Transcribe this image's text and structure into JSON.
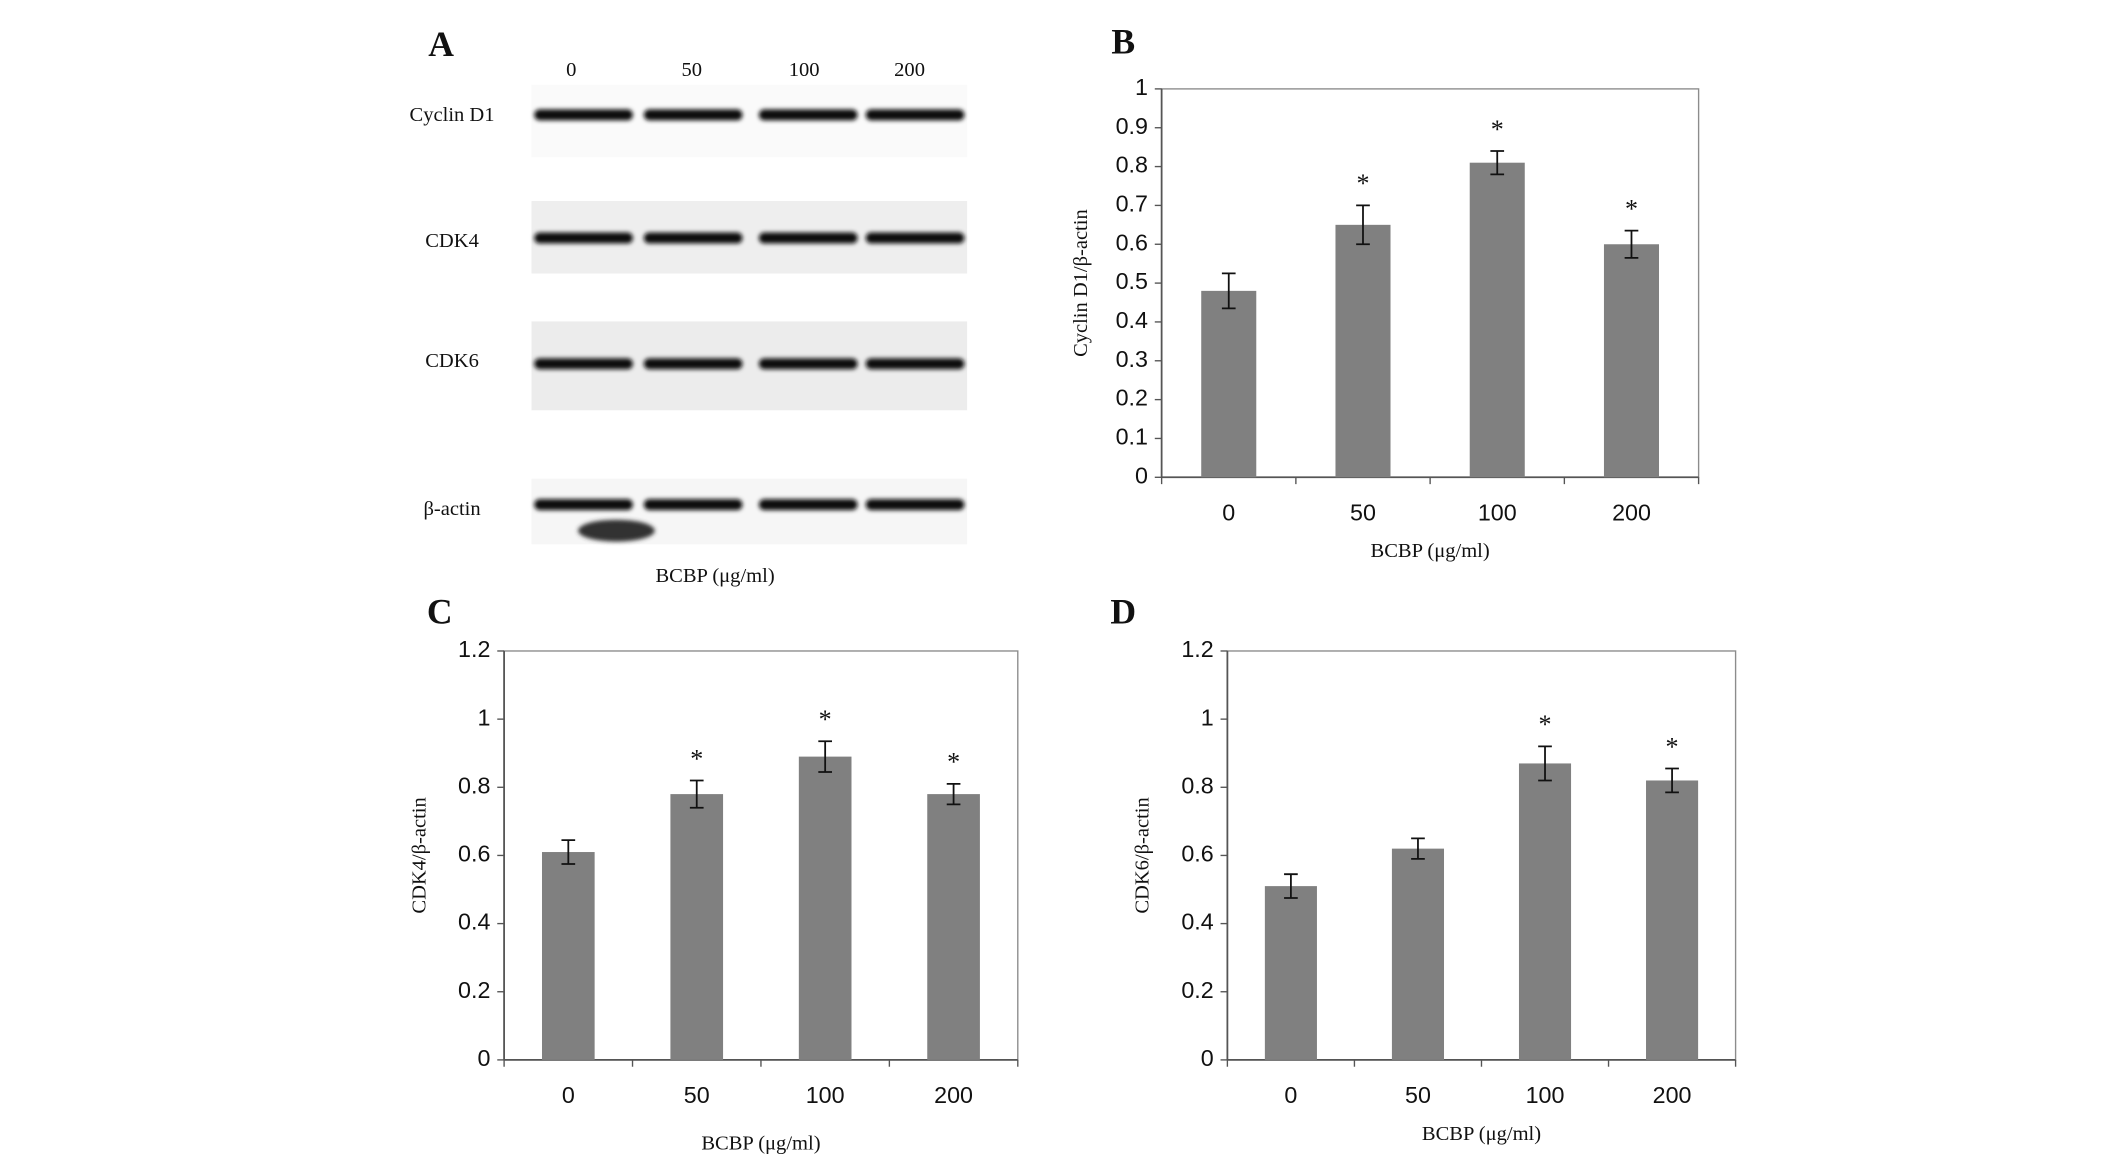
{
  "blot": {
    "panel": "A",
    "lanes": [
      "0",
      "50",
      "100",
      "200"
    ],
    "bands": [
      "Cyclin D1",
      "CDK4",
      "CDK6",
      "β-actin"
    ],
    "x_label": "BCBP (μg/ml)"
  },
  "chart_data": [
    {
      "type": "bar",
      "panel": "B",
      "y_label": "Cyclin D1/β-actin",
      "x_label": "BCBP (μg/ml)",
      "categories": [
        "0",
        "50",
        "100",
        "200"
      ],
      "values": [
        0.48,
        0.65,
        0.81,
        0.6
      ],
      "errors": [
        0.045,
        0.05,
        0.03,
        0.035
      ],
      "annotations": [
        null,
        "*",
        "*",
        "*"
      ],
      "color": "#808080",
      "ylim": [
        0,
        1
      ],
      "yticks": [
        0,
        0.1,
        0.2,
        0.3,
        0.4,
        0.5,
        0.6,
        0.7,
        0.8,
        0.9,
        1
      ]
    },
    {
      "type": "bar",
      "panel": "C",
      "y_label": "CDK4/β-actin",
      "x_label": "BCBP (μg/ml)",
      "categories": [
        "0",
        "50",
        "100",
        "200"
      ],
      "values": [
        0.61,
        0.78,
        0.89,
        0.78
      ],
      "errors": [
        0.035,
        0.04,
        0.045,
        0.03
      ],
      "annotations": [
        null,
        "*",
        "*",
        "*"
      ],
      "color": "#808080",
      "ylim": [
        0,
        1.2
      ],
      "yticks": [
        0,
        0.2,
        0.4,
        0.6,
        0.8,
        1,
        1.2
      ]
    },
    {
      "type": "bar",
      "panel": "D",
      "y_label": "CDK6/β-actin",
      "x_label": "BCBP (μg/ml)",
      "categories": [
        "0",
        "50",
        "100",
        "200"
      ],
      "values": [
        0.51,
        0.62,
        0.87,
        0.82
      ],
      "errors": [
        0.035,
        0.03,
        0.05,
        0.035
      ],
      "annotations": [
        null,
        null,
        "*",
        "*"
      ],
      "color": "#808080",
      "ylim": [
        0,
        1.2
      ],
      "yticks": [
        0,
        0.2,
        0.4,
        0.6,
        0.8,
        1,
        1.2
      ]
    }
  ]
}
